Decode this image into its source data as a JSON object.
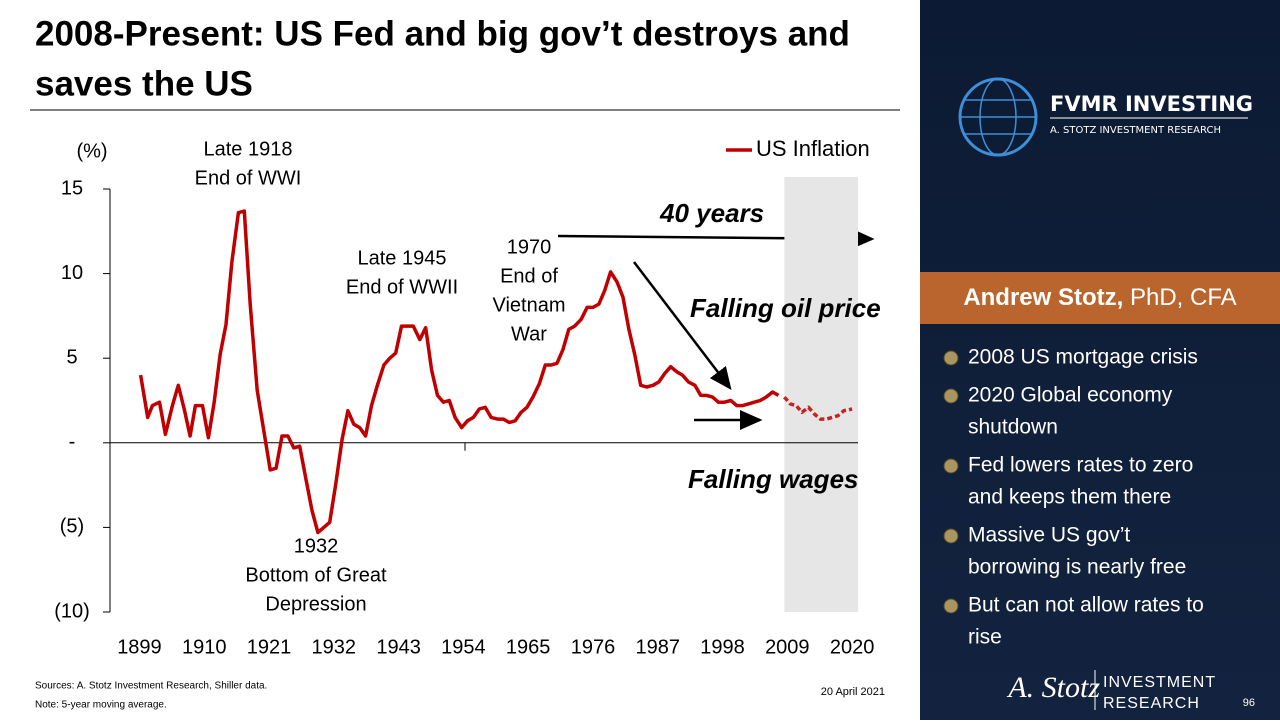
{
  "slide": {
    "title_lines": [
      "2008-Present: US Fed and big gov’t destroys and",
      "saves the US"
    ],
    "sources": "Sources: A. Stotz Investment Research, Shiller data.",
    "note": "Note: 5-year moving average.",
    "date": "20 April 2021",
    "page": "96"
  },
  "sidebar": {
    "brand": "FVMR INVESTING",
    "brand_sub": "A. STOTZ INVESTMENT RESEARCH",
    "name": "Andrew Stotz,",
    "credentials": "PhD, CFA",
    "bullets": [
      [
        "2008 US mortgage crisis"
      ],
      [
        "2020 Global economy",
        "shutdown"
      ],
      [
        "Fed lowers rates to zero",
        "and keeps them there"
      ],
      [
        "Massive US gov’t",
        "borrowing is nearly free"
      ],
      [
        "But can not allow rates to",
        "rise"
      ]
    ],
    "signature": "A. Stotz",
    "logo_lines": [
      "INVESTMENT",
      "RESEARCH"
    ]
  },
  "chart_data": {
    "type": "line",
    "y_label": "(%)",
    "x": [
      1899.2,
      1900.4,
      1901.2,
      1902.4,
      1903.4,
      1904.6,
      1905.6,
      1906.6,
      1907.6,
      1908.5,
      1909.7,
      1910.7,
      1911.7,
      1912.7,
      1913.7,
      1914.7,
      1915.8,
      1916.8,
      1917.8,
      1919.0,
      1921.2,
      1922.2,
      1923.2,
      1924.2,
      1925.2,
      1926.2,
      1927.3,
      1928.3,
      1929.3,
      1930.3,
      1931.3,
      1932.3,
      1933.4,
      1934.4,
      1935.4,
      1936.4,
      1937.4,
      1938.4,
      1939.4,
      1940.5,
      1941.5,
      1942.5,
      1943.5,
      1944.5,
      1945.5,
      1946.6,
      1947.6,
      1948.6,
      1949.6,
      1950.6,
      1951.6,
      1952.6,
      1953.7,
      1954.7,
      1955.7,
      1956.7,
      1957.7,
      1958.7,
      1959.8,
      1960.8,
      1961.8,
      1962.8,
      1963.8,
      1964.8,
      1965.8,
      1966.9,
      1967.9,
      1968.9,
      1969.9,
      1970.9,
      1971.9,
      1972.9,
      1974.0,
      1975.0,
      1976.0,
      1977.0,
      1978.0,
      1979.0,
      1980.1,
      1981.1,
      1982.1,
      1983.1,
      1984.1,
      1985.1,
      1986.2,
      1987.2,
      1988.2,
      1989.2,
      1990.2,
      1991.2,
      1992.2,
      1993.3,
      1994.3,
      1995.3,
      1996.3,
      1997.3,
      1998.3,
      1999.4,
      2000.4,
      2001.4,
      2002.4,
      2003.4,
      2004.4,
      2005.4,
      2006.5,
      2007.5,
      2008.5,
      2009.5,
      2010.5,
      2011.5,
      2012.6,
      2013.6,
      2014.6,
      2015.6,
      2016.6,
      2017.6,
      2018.6,
      2020.0
    ],
    "series": [
      {
        "name": "US Inflation",
        "color": "#c00000",
        "values": [
          4.0,
          1.5,
          2.2,
          2.4,
          0.5,
          2.2,
          3.4,
          2.0,
          0.4,
          2.2,
          2.2,
          0.3,
          2.4,
          5.2,
          7.0,
          10.7,
          13.6,
          13.7,
          8.2,
          3.1,
          -1.6,
          -1.5,
          0.4,
          0.4,
          -0.3,
          -0.2,
          -2.2,
          -4.0,
          -5.3,
          -5.0,
          -4.7,
          -2.5,
          0.2,
          1.9,
          1.1,
          0.9,
          0.4,
          2.2,
          3.4,
          4.6,
          5.0,
          5.3,
          6.9,
          6.9,
          6.9,
          6.1,
          6.8,
          4.3,
          2.8,
          2.4,
          2.5,
          1.5,
          0.9,
          1.3,
          1.5,
          2.0,
          2.1,
          1.5,
          1.4,
          1.4,
          1.2,
          1.3,
          1.8,
          2.1,
          2.7,
          3.5,
          4.6,
          4.6,
          4.7,
          5.5,
          6.7,
          6.9,
          7.3,
          8.0,
          8.0,
          8.2,
          9.0,
          10.1,
          9.5,
          8.6,
          6.7,
          5.2,
          3.4,
          3.3,
          3.4,
          3.6,
          4.1,
          4.5,
          4.2,
          4.0,
          3.6,
          3.4,
          2.8,
          2.8,
          2.7,
          2.4,
          2.4,
          2.5,
          2.2,
          2.2,
          2.3,
          2.4,
          2.5,
          2.7,
          3.0,
          2.8,
          2.7,
          2.3,
          2.2,
          1.8,
          2.1,
          1.7,
          1.4,
          1.4,
          1.5,
          1.6,
          1.9,
          2.0
        ]
      }
    ],
    "xlim": [
      1894,
      2021
    ],
    "xticks": [
      1899,
      1910,
      1921,
      1932,
      1943,
      1954,
      1965,
      1976,
      1987,
      1998,
      2009,
      2020
    ],
    "ylim": [
      -10,
      15
    ],
    "yticks": [
      15,
      10,
      5,
      {
        "value": 0,
        "label": "-"
      },
      {
        "value": -5,
        "label": "(5)"
      },
      {
        "value": -10,
        "label": "(10)"
      }
    ],
    "highlight": [
      2008.5,
      2021
    ],
    "grid": false,
    "legend": "top-right",
    "annotations": [
      [
        "Late 1918",
        "End of WWI"
      ],
      [
        "1932",
        "Bottom of Great",
        "Depression"
      ],
      [
        "Late 1945",
        "End of WWII"
      ],
      [
        "1970",
        "End of",
        "Vietnam",
        "War"
      ],
      [
        "40 years"
      ],
      [
        "Falling oil price"
      ],
      [
        "Falling wages"
      ]
    ]
  }
}
